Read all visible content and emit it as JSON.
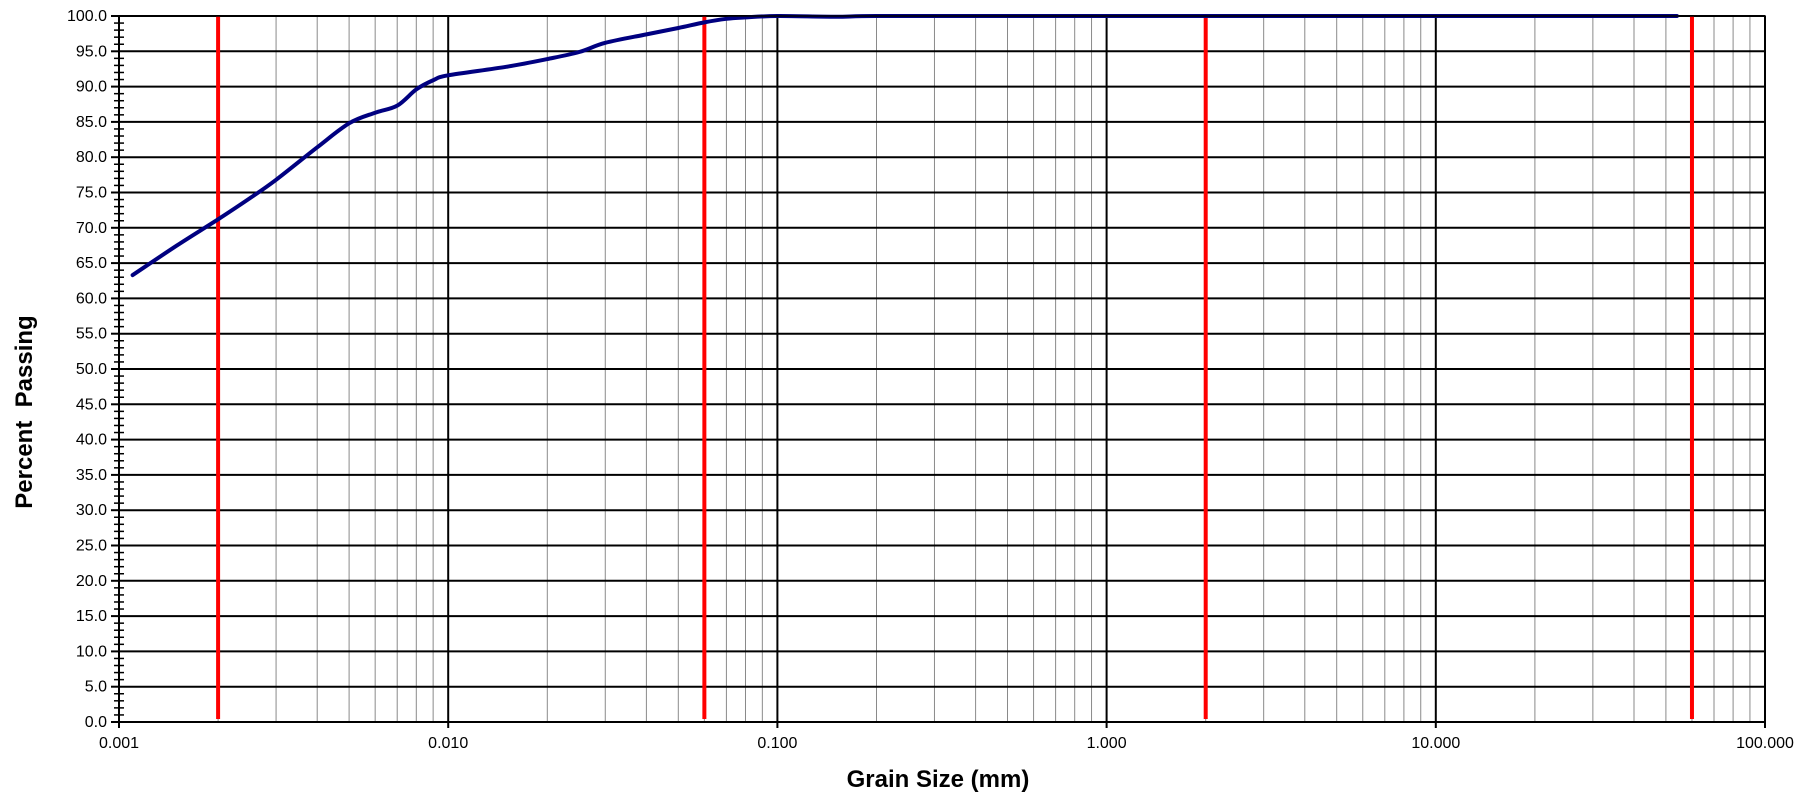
{
  "chart_data": {
    "type": "line",
    "title": "",
    "xlabel": "Grain Size (mm)",
    "ylabel": "Percent  Passing",
    "x_scale": "log",
    "xlim": [
      0.001,
      100
    ],
    "ylim": [
      0,
      100
    ],
    "x_ticks": [
      0.001,
      0.01,
      0.1,
      1,
      10,
      100
    ],
    "x_tick_labels": [
      "0.001",
      "0.010",
      "0.100",
      "1.000",
      "10.000",
      "100.000"
    ],
    "y_ticks": [
      0,
      5,
      10,
      15,
      20,
      25,
      30,
      35,
      40,
      45,
      50,
      55,
      60,
      65,
      70,
      75,
      80,
      85,
      90,
      95,
      100
    ],
    "y_tick_labels": [
      "0.0",
      "5.0",
      "10.0",
      "15.0",
      "20.0",
      "25.0",
      "30.0",
      "35.0",
      "40.0",
      "45.0",
      "50.0",
      "55.0",
      "60.0",
      "65.0",
      "70.0",
      "75.0",
      "80.0",
      "85.0",
      "90.0",
      "95.0",
      "100.0"
    ],
    "grid": true,
    "series": [
      {
        "color": "#000080",
        "x": [
          0.0011,
          0.0015,
          0.002,
          0.0025,
          0.003,
          0.004,
          0.005,
          0.006,
          0.007,
          0.008,
          0.009,
          0.01,
          0.015,
          0.02,
          0.025,
          0.03,
          0.04,
          0.05,
          0.06,
          0.07,
          0.08,
          0.1,
          0.15,
          0.2,
          0.5,
          1,
          2,
          5,
          10,
          20,
          54
        ],
        "y": [
          63.3,
          67.5,
          71.2,
          74.2,
          76.8,
          81.4,
          84.8,
          86.3,
          87.3,
          89.6,
          90.9,
          91.6,
          92.8,
          93.9,
          94.9,
          96.2,
          97.4,
          98.3,
          99.1,
          99.6,
          99.8,
          100,
          99.9,
          100,
          100,
          100,
          100,
          100,
          100,
          100,
          100
        ]
      }
    ],
    "reference_lines": {
      "color": "#ff0000",
      "x": [
        0.002,
        0.06,
        2,
        60
      ]
    }
  }
}
